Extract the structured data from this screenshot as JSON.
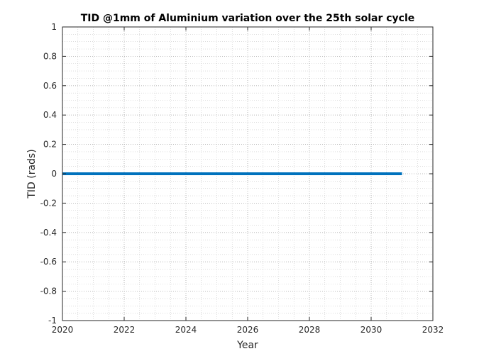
{
  "chart_data": {
    "type": "line",
    "title": "TID @1mm of Aluminium variation over the 25th solar cycle",
    "xlabel": "Year",
    "ylabel": "TID (rads)",
    "xlim": [
      2020,
      2032
    ],
    "ylim": [
      -1,
      1
    ],
    "xticks": [
      2020,
      2022,
      2024,
      2026,
      2028,
      2030,
      2032
    ],
    "yticks": [
      -1,
      -0.8,
      -0.6,
      -0.4,
      -0.2,
      0,
      0.2,
      0.4,
      0.6,
      0.8,
      1
    ],
    "xtick_labels": [
      "2020",
      "2022",
      "2024",
      "2026",
      "2028",
      "2030",
      "2032"
    ],
    "ytick_labels": [
      "-1",
      "-0.8",
      "-0.6",
      "-0.4",
      "-0.2",
      "0",
      "0.2",
      "0.4",
      "0.6",
      "0.8",
      "1"
    ],
    "grid": "major and minor",
    "series": [
      {
        "x": [
          2020,
          2031
        ],
        "y": [
          0,
          0
        ],
        "color": "#0072BD"
      }
    ]
  }
}
